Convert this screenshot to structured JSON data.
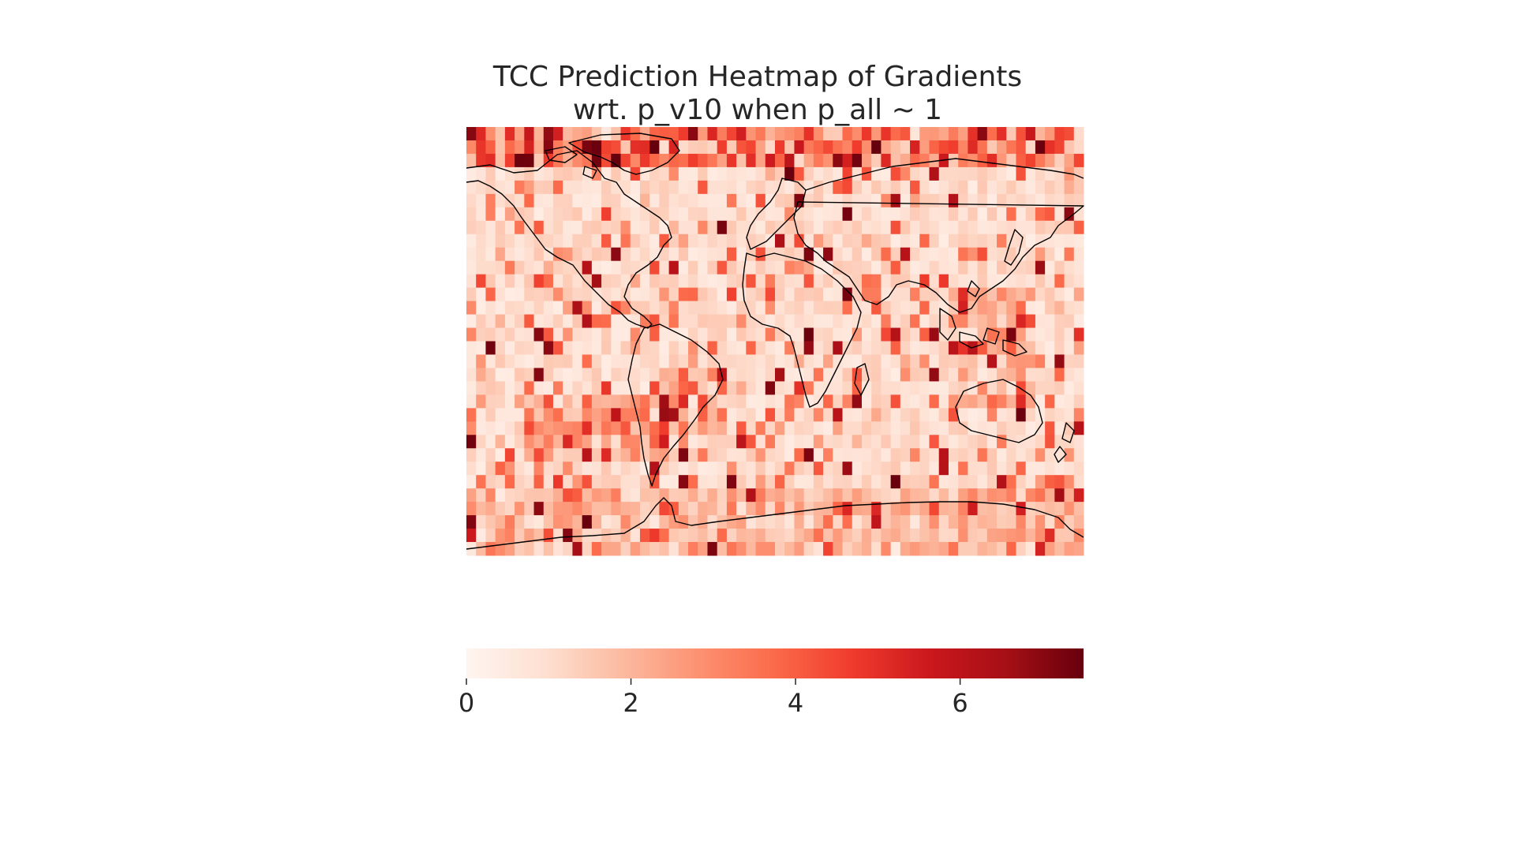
{
  "title_line1": "TCC Prediction Heatmap of Gradients",
  "title_line2": "wrt. p_v10 when p_all ~ 1",
  "chart_data": {
    "type": "heatmap",
    "title": "TCC Prediction Heatmap of Gradients\nwrt. p_v10 when p_all ~ 1",
    "xlabel": "",
    "ylabel": "",
    "colormap": "Reds",
    "colorbar": {
      "orientation": "horizontal",
      "range": [
        0,
        7.5
      ],
      "ticks": [
        0,
        2,
        4,
        6
      ],
      "tick_labels": [
        "0",
        "2",
        "4",
        "6"
      ]
    },
    "grid": false,
    "overlay": "world coastlines",
    "approx_rows": 32,
    "approx_cols": 64,
    "notable_high_regions": [
      "Arctic / Greenland (top band)",
      "South Atlantic off Argentina",
      "Southern Ocean south of Africa",
      "Southeast Asia / Maritime continent",
      "Antarctic coast"
    ]
  }
}
